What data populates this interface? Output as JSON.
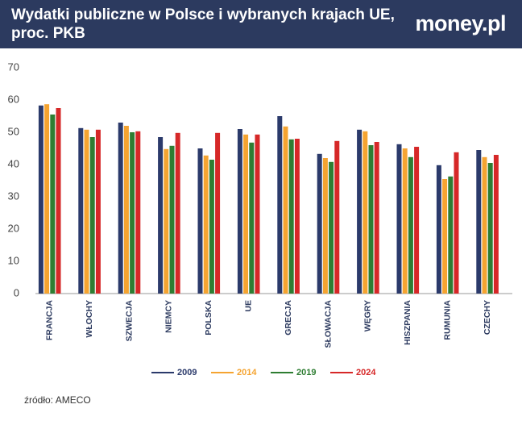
{
  "logo": "money.pl",
  "chart_data": {
    "type": "bar",
    "title": "Wydatki publiczne w Polsce i wybranych krajach UE, proc. PKB",
    "source": "źródło: AMECO",
    "categories": [
      "FRANCJA",
      "WŁOCHY",
      "SZWECJA",
      "NIEMCY",
      "POLSKA",
      "UE",
      "GRECJA",
      "SŁOWACJA",
      "WĘGRY",
      "HISZPANIA",
      "RUMUNIA",
      "CZECHY"
    ],
    "series": [
      {
        "name": "2009",
        "color": "#2b3a6b",
        "values": [
          58.3,
          51.3,
          53,
          48.5,
          45,
          51,
          55,
          43.3,
          50.8,
          46.3,
          39.8,
          44.5
        ]
      },
      {
        "name": "2014",
        "color": "#f5a431",
        "values": [
          58.7,
          50.8,
          52,
          44.8,
          42.8,
          49.3,
          51.8,
          42,
          50.3,
          45,
          35.5,
          42.3
        ]
      },
      {
        "name": "2019",
        "color": "#2e7d32",
        "values": [
          55.5,
          48.5,
          50,
          45.8,
          41.5,
          46.8,
          47.8,
          40.8,
          46,
          42.3,
          36.3,
          40.5
        ]
      },
      {
        "name": "2024",
        "color": "#d62828",
        "values": [
          57.5,
          50.8,
          50.3,
          49.8,
          49.8,
          49.3,
          48,
          47.3,
          47,
          45.5,
          43.8,
          43
        ]
      }
    ],
    "ylim": [
      0,
      70
    ],
    "yticks": [
      0,
      10,
      20,
      30,
      40,
      50,
      60,
      70
    ],
    "grid": false
  }
}
